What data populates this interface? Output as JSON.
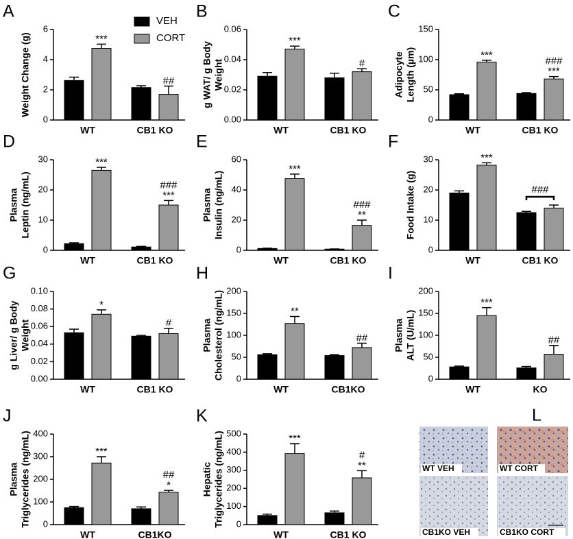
{
  "chart_data": [
    {
      "type": "bar",
      "panel": "A",
      "ylabel": [
        "Weight Change (g)"
      ],
      "categories": [
        "WT",
        "CB1 KO"
      ],
      "ylim": [
        0,
        6
      ],
      "yticks": [
        0,
        2,
        4,
        6
      ],
      "legend": "top",
      "series": [
        {
          "name": "VEH",
          "color": "#000000",
          "values": [
            2.62,
            2.15
          ],
          "errors": [
            0.22,
            0.12
          ]
        },
        {
          "name": "CORT",
          "color": "#999999",
          "values": [
            4.75,
            1.7
          ],
          "errors": [
            0.28,
            0.55
          ],
          "annotations": [
            [
              "***"
            ],
            [
              "##"
            ]
          ]
        }
      ]
    },
    {
      "type": "bar",
      "panel": "B",
      "ylabel": [
        "g WAT/ g Body",
        "Weight"
      ],
      "categories": [
        "WT",
        "CB1 KO"
      ],
      "ylim": [
        0,
        0.06
      ],
      "yticks": [
        {
          "value": 0,
          "label": "0.00"
        },
        {
          "value": 0.02,
          "label": "0.02"
        },
        {
          "value": 0.04,
          "label": "0.04"
        },
        {
          "value": 0.06,
          "label": "0.06"
        }
      ],
      "series": [
        {
          "name": "VEH",
          "color": "#000000",
          "values": [
            0.029,
            0.028
          ],
          "errors": [
            0.0025,
            0.003
          ]
        },
        {
          "name": "CORT",
          "color": "#999999",
          "values": [
            0.047,
            0.032
          ],
          "errors": [
            0.002,
            0.002
          ],
          "annotations": [
            [
              "***"
            ],
            [
              "#"
            ]
          ]
        }
      ]
    },
    {
      "type": "bar",
      "panel": "C",
      "ylabel": [
        "Adipocyte",
        "Length (µm)"
      ],
      "categories": [
        "WT",
        "CB1 KO"
      ],
      "ylim": [
        0,
        150
      ],
      "yticks": [
        0,
        50,
        100,
        150
      ],
      "series": [
        {
          "name": "VEH",
          "color": "#000000",
          "values": [
            42,
            44
          ],
          "errors": [
            1.5,
            1.5
          ]
        },
        {
          "name": "CORT",
          "color": "#999999",
          "values": [
            96,
            68
          ],
          "errors": [
            3,
            4
          ],
          "annotations": [
            [
              "***"
            ],
            [
              "###",
              "***"
            ]
          ]
        }
      ]
    },
    {
      "type": "bar",
      "panel": "D",
      "ylabel": [
        "Plasma",
        "Leptin (ng/mL)"
      ],
      "categories": [
        "WT",
        "CB1 KO"
      ],
      "ylim": [
        0,
        30
      ],
      "yticks": [
        0,
        10,
        20,
        30
      ],
      "series": [
        {
          "name": "VEH",
          "color": "#000000",
          "values": [
            2.2,
            1.1
          ],
          "errors": [
            0.3,
            0.2
          ]
        },
        {
          "name": "CORT",
          "color": "#999999",
          "values": [
            26.5,
            15
          ],
          "errors": [
            1,
            1.5
          ],
          "annotations": [
            [
              "***"
            ],
            [
              "###",
              "***"
            ]
          ]
        }
      ]
    },
    {
      "type": "bar",
      "panel": "E",
      "ylabel": [
        "Plasma",
        "Insulin (ng/mL)"
      ],
      "categories": [
        "WT",
        "CB1 KO"
      ],
      "ylim": [
        0,
        60
      ],
      "yticks": [
        0,
        20,
        40,
        60
      ],
      "series": [
        {
          "name": "VEH",
          "color": "#000000",
          "values": [
            1.2,
            0.8
          ],
          "errors": [
            0.2,
            0.1
          ]
        },
        {
          "name": "CORT",
          "color": "#999999",
          "values": [
            47.5,
            16.5
          ],
          "errors": [
            3,
            3.5
          ],
          "annotations": [
            [
              "***"
            ],
            [
              "###",
              "**"
            ]
          ]
        }
      ]
    },
    {
      "type": "bar",
      "panel": "F",
      "ylabel": [
        "Food Intake (g)"
      ],
      "categories": [
        "WT",
        "CB1 KO"
      ],
      "ylim": [
        0,
        30
      ],
      "yticks": [
        0,
        10,
        20,
        30
      ],
      "group_annotations": [
        null,
        "###"
      ],
      "series": [
        {
          "name": "VEH",
          "color": "#000000",
          "values": [
            19,
            12.5
          ],
          "errors": [
            0.7,
            0.4
          ]
        },
        {
          "name": "CORT",
          "color": "#999999",
          "values": [
            28.2,
            14
          ],
          "errors": [
            0.8,
            1
          ],
          "annotations": [
            [
              "***"
            ],
            null
          ]
        }
      ]
    },
    {
      "type": "bar",
      "panel": "G",
      "ylabel": [
        "g Liver/ g Body",
        "Weight"
      ],
      "categories": [
        "WT",
        "CB1 KO"
      ],
      "ylim": [
        0,
        0.1
      ],
      "yticks": [
        {
          "value": 0,
          "label": "0.00"
        },
        {
          "value": 0.02,
          "label": "0.02"
        },
        {
          "value": 0.04,
          "label": "0.04"
        },
        {
          "value": 0.06,
          "label": "0.06"
        },
        {
          "value": 0.08,
          "label": "0.08"
        },
        {
          "value": 0.1,
          "label": "0.10"
        }
      ],
      "series": [
        {
          "name": "VEH",
          "color": "#000000",
          "values": [
            0.053,
            0.049
          ],
          "errors": [
            0.004,
            0.001
          ]
        },
        {
          "name": "CORT",
          "color": "#999999",
          "values": [
            0.074,
            0.052
          ],
          "errors": [
            0.005,
            0.006
          ],
          "annotations": [
            [
              "*"
            ],
            [
              "#"
            ]
          ]
        }
      ]
    },
    {
      "type": "bar",
      "panel": "H",
      "ylabel": [
        "Plasma",
        "Cholesterol (ng/mL)"
      ],
      "categories": [
        "WT",
        "CB1KO"
      ],
      "ylim": [
        0,
        200
      ],
      "yticks": [
        0,
        50,
        100,
        150,
        200
      ],
      "series": [
        {
          "name": "VEH",
          "color": "#000000",
          "values": [
            56,
            54
          ],
          "errors": [
            2,
            2
          ]
        },
        {
          "name": "CORT",
          "color": "#999999",
          "values": [
            127,
            72
          ],
          "errors": [
            16,
            10
          ],
          "annotations": [
            [
              "**"
            ],
            [
              "##"
            ]
          ]
        }
      ]
    },
    {
      "type": "bar",
      "panel": "I",
      "ylabel": [
        "Plasma",
        "ALT (U/mL)"
      ],
      "categories": [
        "WT",
        "KO"
      ],
      "ylim": [
        0,
        200
      ],
      "yticks": [
        0,
        50,
        100,
        150,
        200
      ],
      "series": [
        {
          "name": "VEH",
          "color": "#000000",
          "values": [
            28,
            26
          ],
          "errors": [
            2,
            3
          ]
        },
        {
          "name": "CORT",
          "color": "#999999",
          "values": [
            145,
            57
          ],
          "errors": [
            18,
            20
          ],
          "annotations": [
            [
              "***"
            ],
            [
              "##"
            ]
          ]
        }
      ]
    },
    {
      "type": "bar",
      "panel": "J",
      "ylabel": [
        "Plasma",
        "Triglycerides (ng/mL)"
      ],
      "categories": [
        "WT",
        "CB1KO"
      ],
      "ylim": [
        0,
        400
      ],
      "yticks": [
        0,
        100,
        200,
        300,
        400
      ],
      "series": [
        {
          "name": "VEH",
          "color": "#000000",
          "values": [
            75,
            70
          ],
          "errors": [
            5,
            8
          ]
        },
        {
          "name": "CORT",
          "color": "#999999",
          "values": [
            272,
            143
          ],
          "errors": [
            28,
            8
          ],
          "annotations": [
            [
              "***"
            ],
            [
              "##",
              "*"
            ]
          ]
        }
      ]
    },
    {
      "type": "bar",
      "panel": "K",
      "ylabel": [
        "Hepatic",
        "Triglycerides (ng/mL)"
      ],
      "categories": [
        "WT",
        "CB1 KO"
      ],
      "ylim": [
        0,
        500
      ],
      "yticks": [
        0,
        100,
        200,
        300,
        400,
        500
      ],
      "series": [
        {
          "name": "VEH",
          "color": "#000000",
          "values": [
            50,
            65
          ],
          "errors": [
            8,
            10
          ]
        },
        {
          "name": "CORT",
          "color": "#999999",
          "values": [
            392,
            258
          ],
          "errors": [
            55,
            40
          ],
          "annotations": [
            [
              "***"
            ],
            [
              "#",
              "**"
            ]
          ]
        }
      ]
    }
  ],
  "panel_l": {
    "panel": "L",
    "images": [
      "WT VEH",
      "WT CORT",
      "CB1KO VEH",
      "CB1KO CORT"
    ]
  }
}
